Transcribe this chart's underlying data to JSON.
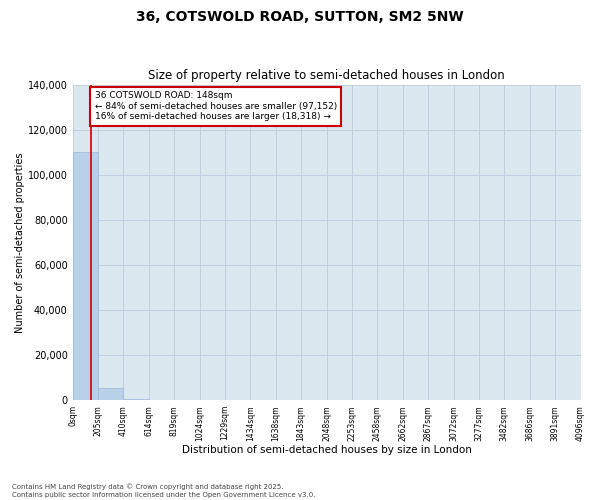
{
  "title": "36, COTSWOLD ROAD, SUTTON, SM2 5NW",
  "subtitle": "Size of property relative to semi-detached houses in London",
  "xlabel": "Distribution of semi-detached houses by size in London",
  "ylabel": "Number of semi-detached properties",
  "annotation_title": "36 COTSWOLD ROAD: 148sqm",
  "annotation_line1": "← 84% of semi-detached houses are smaller (97,152)",
  "annotation_line2": "16% of semi-detached houses are larger (18,318) →",
  "footer1": "Contains HM Land Registry data © Crown copyright and database right 2025.",
  "footer2": "Contains public sector information licensed under the Open Government Licence v3.0.",
  "property_size": 148,
  "bar_edges": [
    0,
    205,
    410,
    614,
    819,
    1024,
    1229,
    1434,
    1638,
    1843,
    2048,
    2253,
    2458,
    2662,
    2867,
    3072,
    3277,
    3482,
    3686,
    3891,
    4096
  ],
  "bar_labels": [
    "0sqm",
    "205sqm",
    "410sqm",
    "614sqm",
    "819sqm",
    "1024sqm",
    "1229sqm",
    "1434sqm",
    "1638sqm",
    "1843sqm",
    "2048sqm",
    "2253sqm",
    "2458sqm",
    "2662sqm",
    "2867sqm",
    "3072sqm",
    "3277sqm",
    "3482sqm",
    "3686sqm",
    "3891sqm",
    "4096sqm"
  ],
  "bar_heights": [
    110000,
    5500,
    500,
    150,
    80,
    40,
    25,
    15,
    10,
    8,
    6,
    5,
    4,
    3,
    2,
    2,
    2,
    1,
    1,
    1
  ],
  "bar_color": "#b8d0e8",
  "bar_edge_color": "#9ab8d8",
  "property_line_color": "#cc0000",
  "grid_color": "#c0d0e0",
  "bg_color": "#dce8f0",
  "ylim": [
    0,
    140000
  ],
  "yticks": [
    0,
    20000,
    40000,
    60000,
    80000,
    100000,
    120000,
    140000
  ]
}
